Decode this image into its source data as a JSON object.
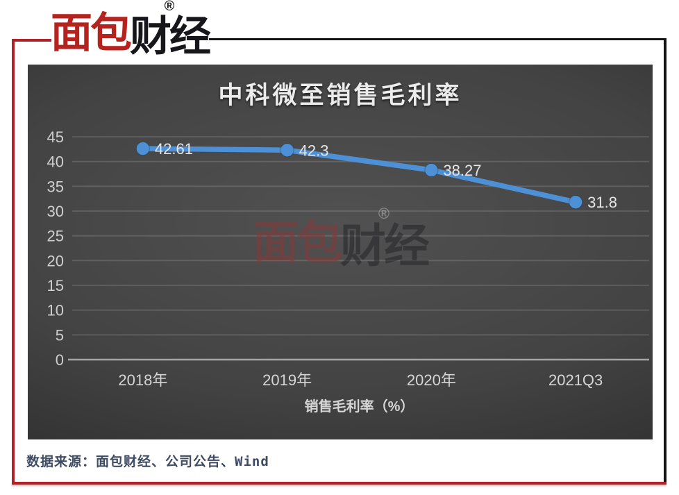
{
  "logo": {
    "red_text": "面包",
    "black_text": "财经",
    "registered_mark": "®"
  },
  "chart_data": {
    "type": "line",
    "title": "中科微至销售毛利率",
    "categories": [
      "2018年",
      "2019年",
      "2020年",
      "2021Q3"
    ],
    "values": [
      42.61,
      42.3,
      38.27,
      31.8
    ],
    "data_labels": [
      "42.61",
      "42.3",
      "38.27",
      "31.8"
    ],
    "series_name": "销售毛利率（%）",
    "xlabel": "销售毛利率（%）",
    "ylabel": "",
    "ylim": [
      0,
      45
    ],
    "ytick_step": 5,
    "yticks": [
      0,
      5,
      10,
      15,
      20,
      25,
      30,
      35,
      40,
      45
    ],
    "grid": true,
    "legend": "none",
    "line_color": "#4D90D6",
    "marker_color": "#4D90D6",
    "data_label_color": "#e6e6e6",
    "axis_text_color": "#d6d6d6",
    "gridline_color": "rgba(255,255,255,0.14)",
    "baseline_color": "#a5a5a5",
    "background": "dark-gray-radial"
  },
  "source": {
    "text": "数据来源：面包财经、公司公告、Wind"
  },
  "colors": {
    "frame_red": "#AF2227",
    "frame_black": "#141414",
    "logo_red": "#B5231F",
    "logo_black": "#17171B",
    "source_text": "#3E4B63",
    "title_text": "#ECECEC"
  }
}
